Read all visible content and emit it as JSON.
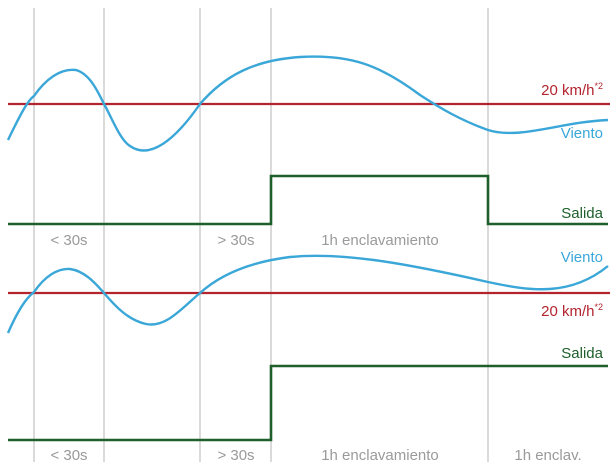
{
  "colors": {
    "threshold": "#b3242e",
    "wind": "#3aa7d8",
    "output": "#1e5f2b",
    "grid": "#b4b4b4",
    "interval_text": "#9a9a9a"
  },
  "top_panel": {
    "threshold_label": "20 km/h",
    "threshold_sup": "*2",
    "wind_label": "Viento",
    "output_label": "Salida",
    "intervals": [
      "< 30s",
      "> 30s",
      "1h enclavamiento"
    ]
  },
  "bottom_panel": {
    "threshold_label": "20 km/h",
    "threshold_sup": "*2",
    "wind_label": "Viento",
    "output_label": "Salida",
    "intervals": [
      "< 30s",
      "> 30s",
      "1h enclavamiento",
      "1h enclav."
    ]
  }
}
